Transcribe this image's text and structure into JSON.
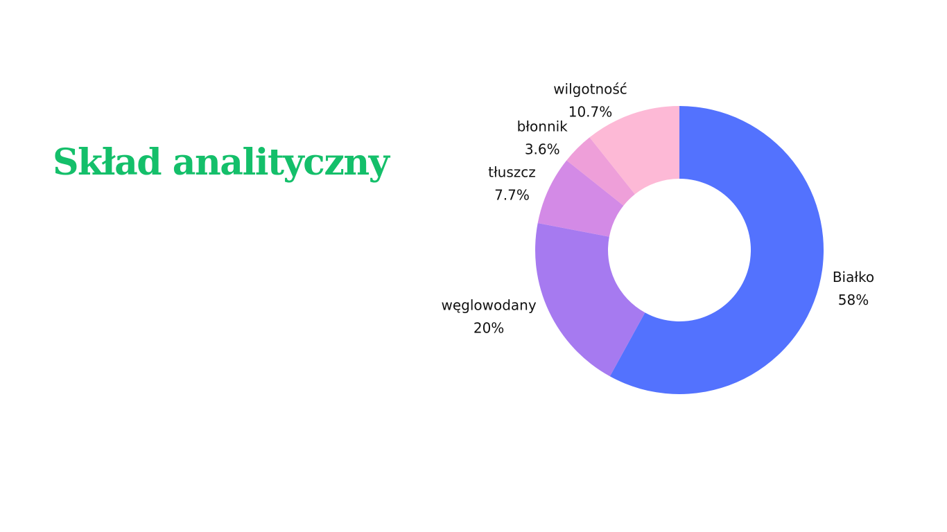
{
  "chart_data": {
    "type": "pie",
    "title": "Skład analityczny",
    "categories": [
      "Białko",
      "węglowodany",
      "tłuszcz",
      "błonnik",
      "wilgotność"
    ],
    "values": [
      58,
      20,
      7.7,
      3.6,
      10.7
    ],
    "value_labels": [
      "58%",
      "20%",
      "7.7%",
      "3.6%",
      "10.7%"
    ],
    "colors": [
      "#5372fe",
      "#a67af0",
      "#d38ae6",
      "#ee9fd9",
      "#fdb9d6"
    ]
  }
}
